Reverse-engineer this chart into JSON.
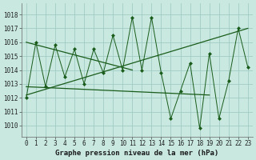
{
  "xlabel": "Graphe pression niveau de la mer (hPa)",
  "bg_color": "#c8e8e0",
  "grid_color": "#a0ccc4",
  "line_color": "#1a5c1a",
  "xlim": [
    -0.5,
    23.5
  ],
  "ylim": [
    1009.2,
    1018.8
  ],
  "yticks": [
    1010,
    1011,
    1012,
    1013,
    1014,
    1015,
    1016,
    1017,
    1018
  ],
  "xticks": [
    0,
    1,
    2,
    3,
    4,
    5,
    6,
    7,
    8,
    9,
    10,
    11,
    12,
    13,
    14,
    15,
    16,
    17,
    18,
    19,
    20,
    21,
    22,
    23
  ],
  "hours": [
    0,
    1,
    2,
    3,
    4,
    5,
    6,
    7,
    8,
    9,
    10,
    11,
    12,
    13,
    14,
    15,
    16,
    17,
    18,
    19,
    20,
    21,
    22,
    23
  ],
  "pressure": [
    1012.0,
    1016.0,
    1012.8,
    1015.8,
    1013.5,
    1015.5,
    1013.0,
    1015.5,
    1013.8,
    1016.5,
    1014.0,
    1017.8,
    1014.0,
    1017.8,
    1013.8,
    1010.5,
    1012.5,
    1014.5,
    1009.8,
    1015.2,
    1010.5,
    1013.2,
    1017.0,
    1014.2
  ],
  "trend_lines": [
    {
      "x": [
        0,
        11
      ],
      "y": [
        1016.0,
        1014.0
      ]
    },
    {
      "x": [
        0,
        23
      ],
      "y": [
        1012.2,
        1017.0
      ]
    },
    {
      "x": [
        0,
        19
      ],
      "y": [
        1012.8,
        1012.2
      ]
    }
  ],
  "xlabel_fontsize": 6.5,
  "tick_fontsize": 5.5
}
